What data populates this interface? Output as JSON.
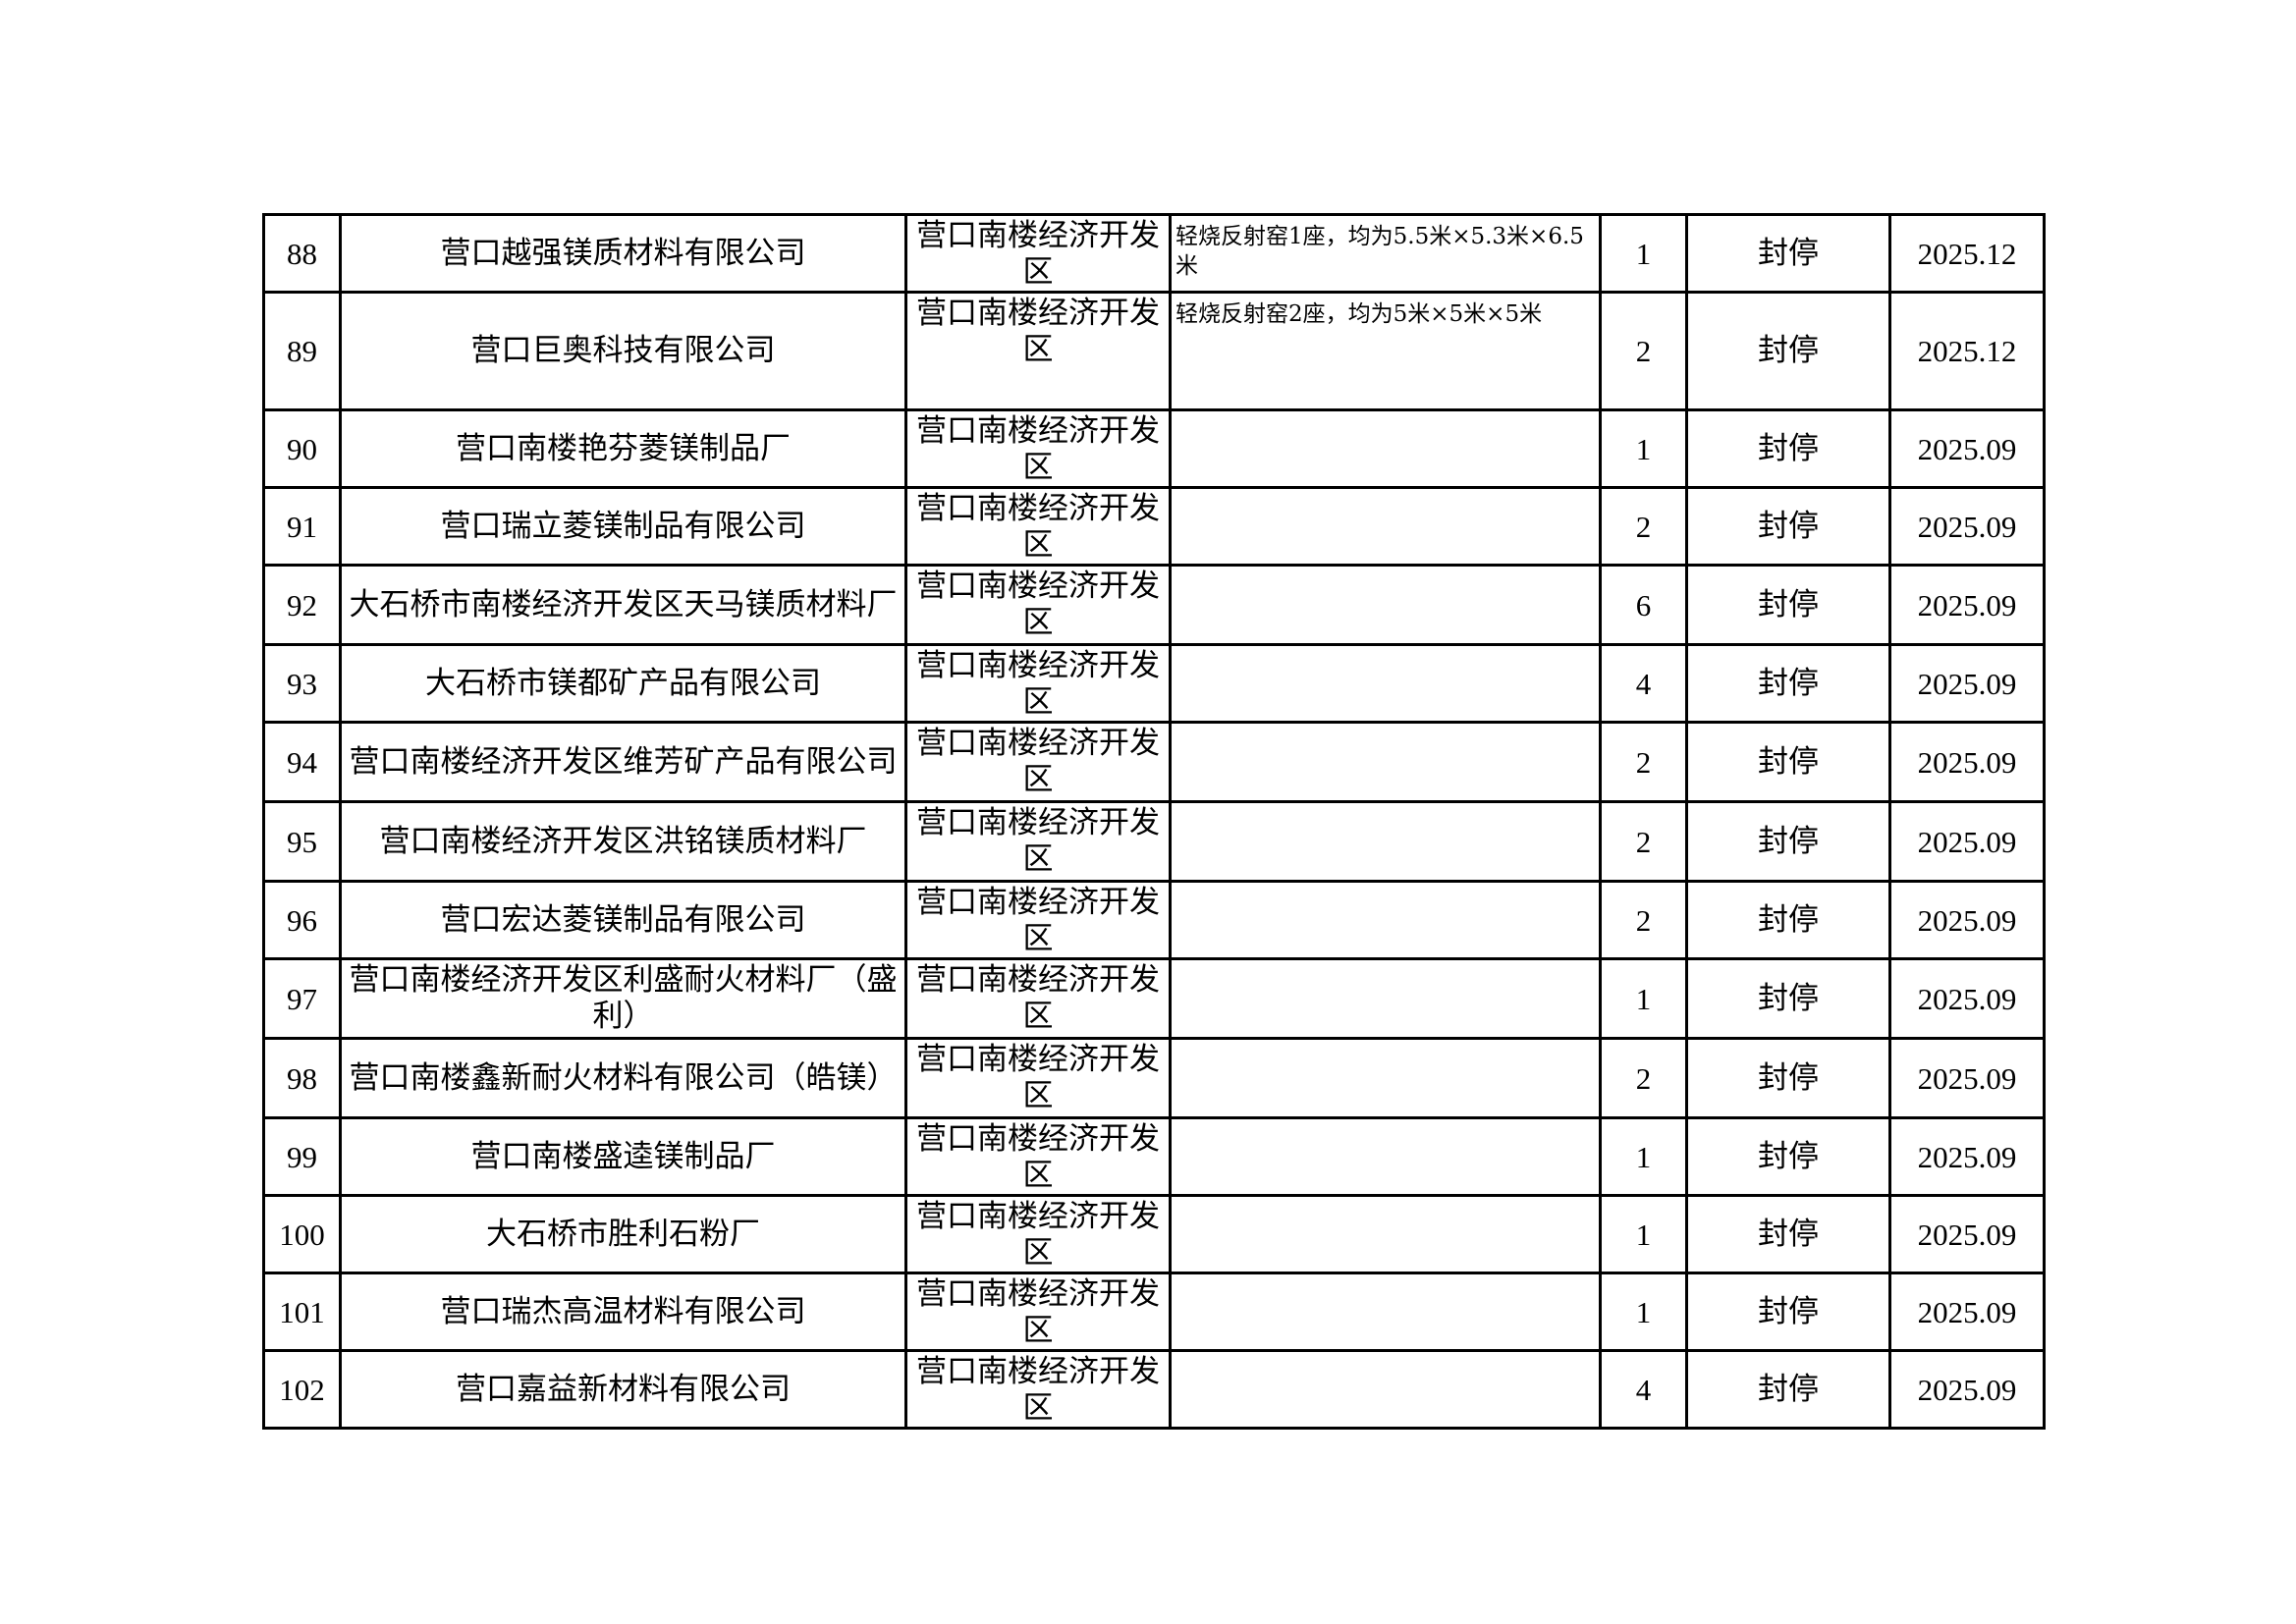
{
  "rows": [
    {
      "no": "88",
      "name": "营口越强镁质材料有限公司",
      "region": "营口南楼经济开发区",
      "description": "轻烧反射窑1座，均为5.5米×5.3米×6.5米",
      "count": "1",
      "status": "封停",
      "date": "2025.12"
    },
    {
      "no": "89",
      "name": "营口巨奥科技有限公司",
      "region": "营口南楼经济开发区",
      "description": "轻烧反射窑2座，均为5米×5米×5米",
      "count": "2",
      "status": "封停",
      "date": "2025.12"
    },
    {
      "no": "90",
      "name": "营口南楼艳芬菱镁制品厂",
      "region": "营口南楼经济开发区",
      "description": "",
      "count": "1",
      "status": "封停",
      "date": "2025.09"
    },
    {
      "no": "91",
      "name": "营口瑞立菱镁制品有限公司",
      "region": "营口南楼经济开发区",
      "description": "",
      "count": "2",
      "status": "封停",
      "date": "2025.09"
    },
    {
      "no": "92",
      "name": "大石桥市南楼经济开发区天马镁质材料厂",
      "region": "营口南楼经济开发区",
      "description": "",
      "count": "6",
      "status": "封停",
      "date": "2025.09"
    },
    {
      "no": "93",
      "name": "大石桥市镁都矿产品有限公司",
      "region": "营口南楼经济开发区",
      "description": "",
      "count": "4",
      "status": "封停",
      "date": "2025.09"
    },
    {
      "no": "94",
      "name": "营口南楼经济开发区维芳矿产品有限公司",
      "region": "营口南楼经济开发区",
      "description": "",
      "count": "2",
      "status": "封停",
      "date": "2025.09"
    },
    {
      "no": "95",
      "name": "营口南楼经济开发区洪铭镁质材料厂",
      "region": "营口南楼经济开发区",
      "description": "",
      "count": "2",
      "status": "封停",
      "date": "2025.09"
    },
    {
      "no": "96",
      "name": "营口宏达菱镁制品有限公司",
      "region": "营口南楼经济开发区",
      "description": "",
      "count": "2",
      "status": "封停",
      "date": "2025.09"
    },
    {
      "no": "97",
      "name": "营口南楼经济开发区利盛耐火材料厂（盛利）",
      "region": "营口南楼经济开发区",
      "description": "",
      "count": "1",
      "status": "封停",
      "date": "2025.09"
    },
    {
      "no": "98",
      "name": "营口南楼鑫新耐火材料有限公司（皓镁）",
      "region": "营口南楼经济开发区",
      "description": "",
      "count": "2",
      "status": "封停",
      "date": "2025.09"
    },
    {
      "no": "99",
      "name": "营口南楼盛逵镁制品厂",
      "region": "营口南楼经济开发区",
      "description": "",
      "count": "1",
      "status": "封停",
      "date": "2025.09"
    },
    {
      "no": "100",
      "name": "大石桥市胜利石粉厂",
      "region": "营口南楼经济开发区",
      "description": "",
      "count": "1",
      "status": "封停",
      "date": "2025.09"
    },
    {
      "no": "101",
      "name": "营口瑞杰高温材料有限公司",
      "region": "营口南楼经济开发区",
      "description": "",
      "count": "1",
      "status": "封停",
      "date": "2025.09"
    },
    {
      "no": "102",
      "name": "营口嘉益新材料有限公司",
      "region": "营口南楼经济开发区",
      "description": "",
      "count": "4",
      "status": "封停",
      "date": "2025.09"
    }
  ]
}
